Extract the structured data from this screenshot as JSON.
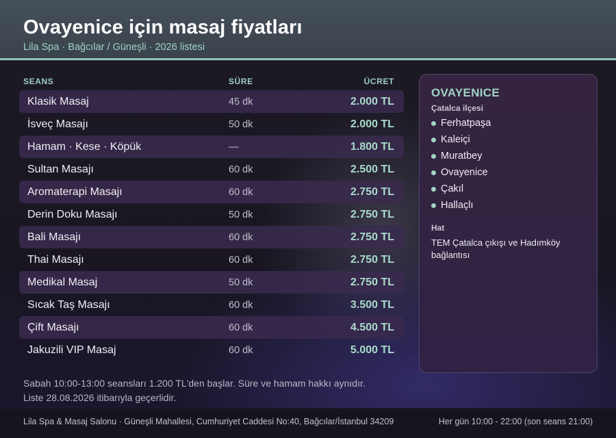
{
  "header": {
    "title": "Ovayenice için masaj fiyatları",
    "subtitle": "Lila Spa · Bağcılar / Güneşli · 2026 listesi"
  },
  "table": {
    "columns": {
      "seans": "SEANS",
      "sure": "SÜRE",
      "ucret": "ÜCRET"
    },
    "rows": [
      {
        "name": "Klasik Masaj",
        "duration": "45 dk",
        "price": "2.000 TL"
      },
      {
        "name": "İsveç Masajı",
        "duration": "50 dk",
        "price": "2.000 TL"
      },
      {
        "name": "Hamam · Kese · Köpük",
        "duration": "—",
        "price": "1.800 TL"
      },
      {
        "name": "Sultan Masajı",
        "duration": "60 dk",
        "price": "2.500 TL"
      },
      {
        "name": "Aromaterapi Masajı",
        "duration": "60 dk",
        "price": "2.750 TL"
      },
      {
        "name": "Derin Doku Masajı",
        "duration": "50 dk",
        "price": "2.750 TL"
      },
      {
        "name": "Bali Masajı",
        "duration": "60 dk",
        "price": "2.750 TL"
      },
      {
        "name": "Thai Masajı",
        "duration": "60 dk",
        "price": "2.750 TL"
      },
      {
        "name": "Medikal Masaj",
        "duration": "50 dk",
        "price": "2.750 TL"
      },
      {
        "name": "Sıcak Taş Masajı",
        "duration": "60 dk",
        "price": "3.500 TL"
      },
      {
        "name": "Çift Masajı",
        "duration": "60 dk",
        "price": "4.500 TL"
      },
      {
        "name": "Jakuzili VIP Masaj",
        "duration": "60 dk",
        "price": "5.000 TL"
      }
    ]
  },
  "notes": {
    "line1": "Sabah 10:00-13:00 seansları 1.200 TL'den başlar. Süre ve hamam hakkı aynıdır.",
    "line2": "Liste 28.08.2026 itibarıyla geçerlidir."
  },
  "panel": {
    "title": "OVAYENICE",
    "subtitle": "Çatalca ilçesi",
    "districts": [
      "Ferhatpaşa",
      "Kaleiçi",
      "Muratbey",
      "Ovayenice",
      "Çakıl",
      "Hallaçlı"
    ],
    "hat_label": "Hat",
    "hat_text": "TEM Çatalca çıkışı ve Hadımköy bağlantısı"
  },
  "footer": {
    "address": "Lila Spa & Masaj Salonu · Güneşli Mahallesi, Cumhuriyet Caddesi No:40, Bağcılar/İstanbul 34209",
    "hours": "Her gün 10:00 - 22:00 (son seans 21:00)"
  }
}
